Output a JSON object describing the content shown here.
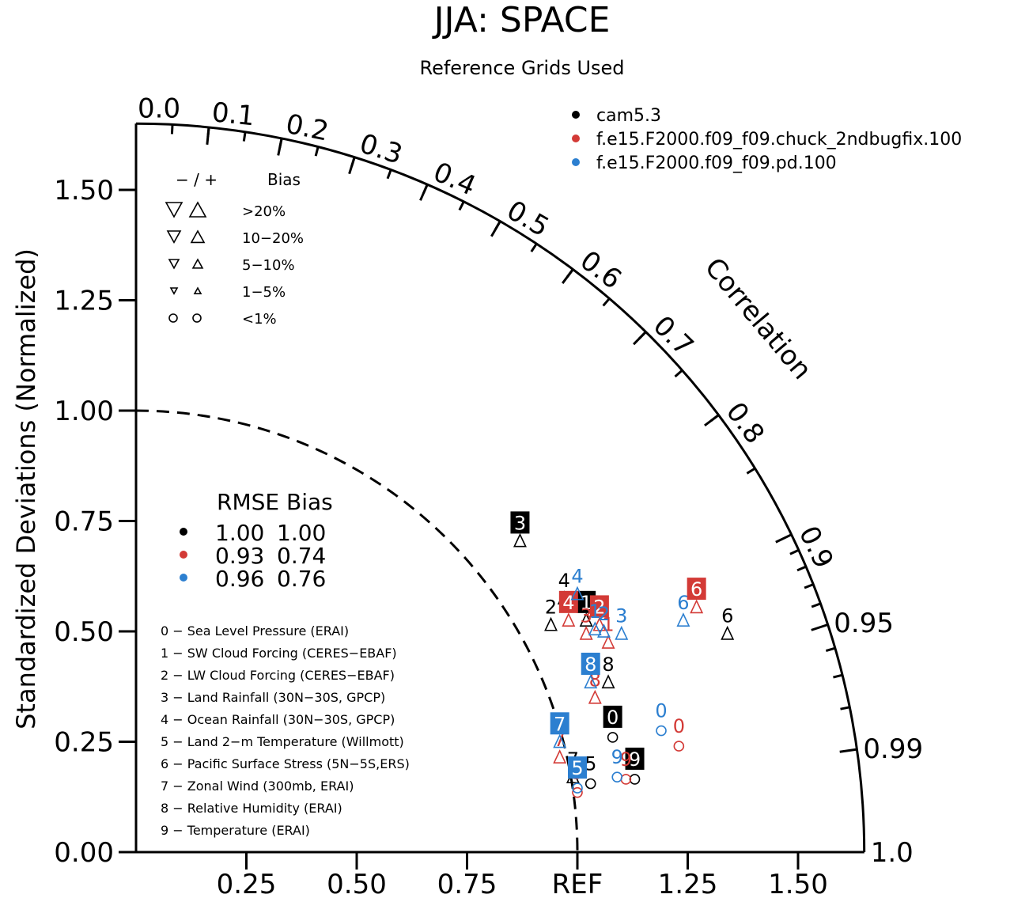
{
  "chart_data": {
    "type": "scatter",
    "title": "JJA: SPACE",
    "subtitle": "Reference Grids Used",
    "ylabel": "Standardized Deviations (Normalized)",
    "xlabel": "",
    "angular_label": "Correlation",
    "ref_label": "REF",
    "x_ticks": [
      "0.25",
      "0.50",
      "0.75",
      "REF",
      "1.25",
      "1.50"
    ],
    "y_ticks": [
      "0.00",
      "0.25",
      "0.50",
      "0.75",
      "1.00",
      "1.25",
      "1.50"
    ],
    "corr_ticks": [
      "0.0",
      "0.1",
      "0.2",
      "0.3",
      "0.4",
      "0.5",
      "0.6",
      "0.7",
      "0.8",
      "0.9",
      "0.95",
      "0.99",
      "1.0"
    ],
    "std_max": 1.65,
    "legend_position": "top-right",
    "series": [
      {
        "name": "cam5.3",
        "color": "#000000",
        "points": [
          {
            "id": "0",
            "x": 1.08,
            "y": 0.26,
            "marker": "circle",
            "boxed": true
          },
          {
            "id": "1",
            "x": 1.02,
            "y": 0.52,
            "marker": "triangle-up",
            "boxed": true
          },
          {
            "id": "2",
            "x": 0.94,
            "y": 0.51,
            "marker": "triangle-up",
            "boxed": false
          },
          {
            "id": "3",
            "x": 0.87,
            "y": 0.7,
            "marker": "triangle-up",
            "boxed": true
          },
          {
            "id": "4",
            "x": 0.97,
            "y": 0.57,
            "marker": "triangle-up",
            "boxed": false
          },
          {
            "id": "5",
            "x": 1.03,
            "y": 0.155,
            "marker": "circle",
            "boxed": false
          },
          {
            "id": "6",
            "x": 1.34,
            "y": 0.49,
            "marker": "triangle-up",
            "boxed": false
          },
          {
            "id": "7",
            "x": 0.99,
            "y": 0.165,
            "marker": "triangle-up",
            "boxed": false
          },
          {
            "id": "8",
            "x": 1.07,
            "y": 0.38,
            "marker": "triangle-up",
            "boxed": false
          },
          {
            "id": "9",
            "x": 1.13,
            "y": 0.165,
            "marker": "circle",
            "boxed": true
          }
        ]
      },
      {
        "name": "f.e15.F2000.f09_f09.chuck_2ndbugfix.100",
        "color": "#d33a36",
        "points": [
          {
            "id": "0",
            "x": 1.23,
            "y": 0.24,
            "marker": "circle",
            "boxed": false
          },
          {
            "id": "1",
            "x": 1.07,
            "y": 0.47,
            "marker": "triangle-up",
            "boxed": false
          },
          {
            "id": "2",
            "x": 1.05,
            "y": 0.51,
            "marker": "triangle-up",
            "boxed": true
          },
          {
            "id": "3",
            "x": 1.02,
            "y": 0.49,
            "marker": "triangle-up",
            "boxed": false
          },
          {
            "id": "4",
            "x": 0.98,
            "y": 0.52,
            "marker": "triangle-up",
            "boxed": true
          },
          {
            "id": "5",
            "x": 1.0,
            "y": 0.135,
            "marker": "circle",
            "boxed": false
          },
          {
            "id": "6",
            "x": 1.27,
            "y": 0.55,
            "marker": "triangle-up",
            "boxed": true
          },
          {
            "id": "7",
            "x": 0.96,
            "y": 0.21,
            "marker": "triangle-up",
            "boxed": false
          },
          {
            "id": "8",
            "x": 1.04,
            "y": 0.345,
            "marker": "triangle-up",
            "boxed": false
          },
          {
            "id": "9",
            "x": 1.11,
            "y": 0.165,
            "marker": "circle",
            "boxed": false
          }
        ]
      },
      {
        "name": "f.e15.F2000.f09_f09.pd.100",
        "color": "#2c7fd0",
        "points": [
          {
            "id": "0",
            "x": 1.19,
            "y": 0.275,
            "marker": "circle",
            "boxed": false
          },
          {
            "id": "1",
            "x": 1.04,
            "y": 0.5,
            "marker": "triangle-up",
            "boxed": false
          },
          {
            "id": "2",
            "x": 1.06,
            "y": 0.495,
            "marker": "triangle-up",
            "boxed": false
          },
          {
            "id": "3",
            "x": 1.1,
            "y": 0.49,
            "marker": "triangle-up",
            "boxed": false
          },
          {
            "id": "4",
            "x": 1.0,
            "y": 0.58,
            "marker": "triangle-up",
            "boxed": false
          },
          {
            "id": "5",
            "x": 1.0,
            "y": 0.145,
            "marker": "circle",
            "boxed": true
          },
          {
            "id": "6",
            "x": 1.24,
            "y": 0.52,
            "marker": "triangle-up",
            "boxed": false
          },
          {
            "id": "7",
            "x": 0.96,
            "y": 0.245,
            "marker": "triangle-up",
            "boxed": true
          },
          {
            "id": "8",
            "x": 1.03,
            "y": 0.38,
            "marker": "triangle-up",
            "boxed": true
          },
          {
            "id": "9",
            "x": 1.09,
            "y": 0.17,
            "marker": "circle",
            "boxed": false
          }
        ]
      }
    ],
    "bias_legend": {
      "header_sign": "−  /  +",
      "header_label": "Bias",
      "rows": [
        ">20%",
        "10−20%",
        "5−10%",
        "1−5%",
        "<1%"
      ]
    },
    "rmse_legend": {
      "header": "RMSE  Bias",
      "rows": [
        {
          "color": "#000000",
          "rmse": "1.00",
          "bias": "1.00"
        },
        {
          "color": "#d33a36",
          "rmse": "0.93",
          "bias": "0.74"
        },
        {
          "color": "#2c7fd0",
          "rmse": "0.96",
          "bias": "0.76"
        }
      ]
    },
    "variables": [
      "0 − Sea Level Pressure (ERAI)",
      "1 − SW Cloud Forcing (CERES−EBAF)",
      "2 − LW Cloud Forcing (CERES−EBAF)",
      "3 − Land Rainfall (30N−30S, GPCP)",
      "4 − Ocean Rainfall (30N−30S, GPCP)",
      "5 − Land 2−m Temperature (Willmott)",
      "6 − Pacific Surface Stress (5N−5S,ERS)",
      "7 − Zonal Wind (300mb, ERAI)",
      "8 − Relative Humidity (ERAI)",
      "9 − Temperature (ERAI)"
    ]
  }
}
